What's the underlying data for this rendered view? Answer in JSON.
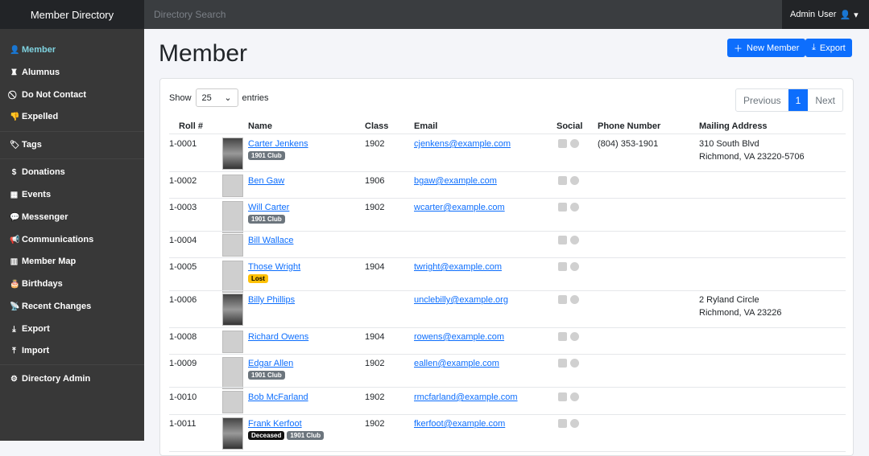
{
  "topbar": {
    "brand": "Member Directory",
    "search_placeholder": "Directory Search",
    "user": "Admin User"
  },
  "sidebar": [
    {
      "label": "Member",
      "icon": "user-icon",
      "active": true
    },
    {
      "label": "Alumnus",
      "icon": "graduate-icon"
    },
    {
      "label": "Do Not Contact",
      "icon": "ban-icon"
    },
    {
      "label": "Expelled",
      "icon": "thumbs-down-icon"
    },
    {
      "label": "Tags",
      "icon": "tags-icon"
    },
    {
      "label": "Donations",
      "icon": "donate-icon"
    },
    {
      "label": "Events",
      "icon": "calendar-icon"
    },
    {
      "label": "Messenger",
      "icon": "comments-icon"
    },
    {
      "label": "Communications",
      "icon": "bullhorn-icon"
    },
    {
      "label": "Member Map",
      "icon": "map-icon"
    },
    {
      "label": "Birthdays",
      "icon": "birthday-cake-icon"
    },
    {
      "label": "Recent Changes",
      "icon": "satellite-icon"
    },
    {
      "label": "Export",
      "icon": "download-icon"
    },
    {
      "label": "Import",
      "icon": "upload-icon"
    },
    {
      "label": "Directory Admin",
      "icon": "gear-icon"
    }
  ],
  "page": {
    "title": "Member",
    "new_button": "New Member",
    "export_button": "Export"
  },
  "table": {
    "show_label": "Show",
    "entries_value": "25",
    "entries_label": "entries",
    "pagination": {
      "previous": "Previous",
      "current": "1",
      "next": "Next"
    },
    "columns": [
      "Roll #",
      "Name",
      "Class",
      "Email",
      "Social",
      "Phone Number",
      "Mailing Address"
    ],
    "rows": [
      {
        "roll": "1-0001",
        "name": "Carter Jenkens",
        "photo": true,
        "badges": [
          "1901 Club"
        ],
        "class": "1902",
        "email": "cjenkens@example.com",
        "phone": "(804) 353-1901",
        "address": [
          "310 South Blvd",
          "Richmond, VA 23220-5706"
        ]
      },
      {
        "roll": "1-0002",
        "name": "Ben Gaw",
        "photo": false,
        "badges": [],
        "class": "1906",
        "email": "bgaw@example.com",
        "phone": "",
        "address": []
      },
      {
        "roll": "1-0003",
        "name": "Will Carter",
        "photo": false,
        "badges": [
          "1901 Club"
        ],
        "class": "1902",
        "email": "wcarter@example.com",
        "phone": "",
        "address": []
      },
      {
        "roll": "1-0004",
        "name": "Bill Wallace",
        "photo": false,
        "badges": [],
        "class": "",
        "email": "",
        "phone": "",
        "address": []
      },
      {
        "roll": "1-0005",
        "name": "Those Wright",
        "photo": false,
        "badges": [
          "Lost"
        ],
        "class": "1904",
        "email": "twright@example.com",
        "phone": "",
        "address": []
      },
      {
        "roll": "1-0006",
        "name": "Billy Phillips",
        "photo": true,
        "badges": [],
        "class": "",
        "email": "unclebilly@example.org",
        "phone": "",
        "address": [
          "2 Ryland Circle",
          "Richmond, VA 23226"
        ]
      },
      {
        "roll": "1-0008",
        "name": "Richard Owens",
        "photo": false,
        "badges": [],
        "class": "1904",
        "email": "rowens@example.com",
        "phone": "",
        "address": []
      },
      {
        "roll": "1-0009",
        "name": "Edgar Allen",
        "photo": false,
        "badges": [
          "1901 Club"
        ],
        "class": "1902",
        "email": "eallen@example.com",
        "phone": "",
        "address": []
      },
      {
        "roll": "1-0010",
        "name": "Bob McFarland",
        "photo": false,
        "badges": [],
        "class": "1902",
        "email": "rmcfarland@example.com",
        "phone": "",
        "address": []
      },
      {
        "roll": "1-0011",
        "name": "Frank Kerfoot",
        "photo": true,
        "badges": [
          "Deceased",
          "1901 Club"
        ],
        "class": "1902",
        "email": "fkerfoot@example.com",
        "phone": "",
        "address": []
      }
    ]
  }
}
